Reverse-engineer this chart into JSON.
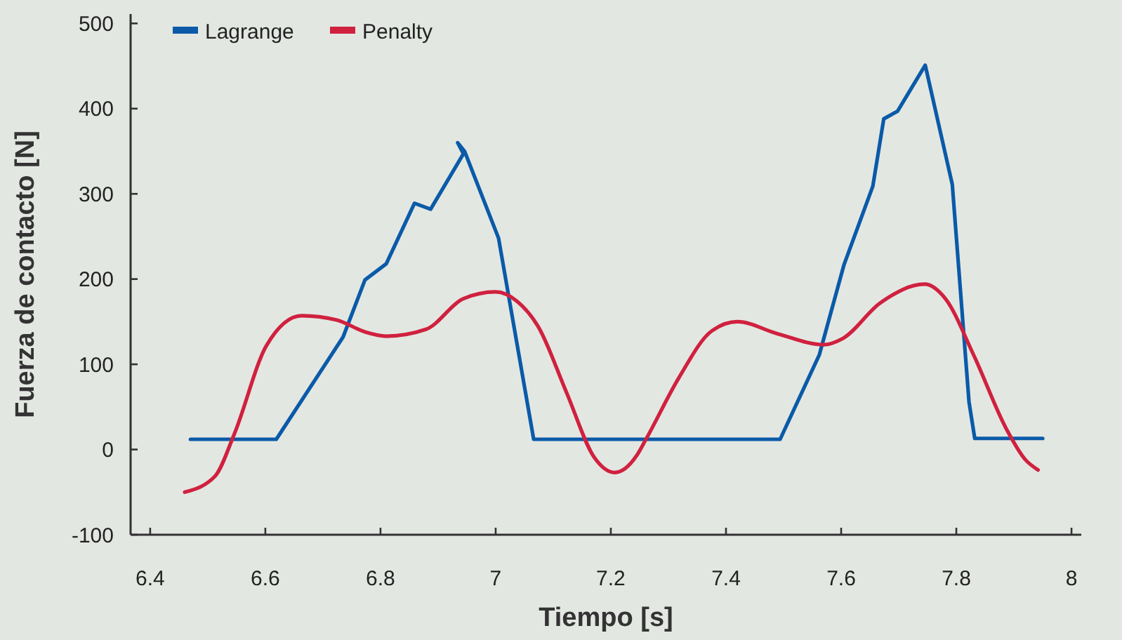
{
  "chart_data": {
    "type": "line",
    "xlabel": "Tiempo [s]",
    "ylabel": "Fuerza de contacto [N]",
    "xlim": [
      6.366,
      8.017
    ],
    "ylim": [
      -100,
      511
    ],
    "xticks": [
      6.4,
      6.6,
      6.8,
      7,
      7.2,
      7.4,
      7.6,
      7.8,
      8
    ],
    "yticks": [
      -100,
      0,
      100,
      200,
      300,
      400,
      500
    ],
    "grid": false,
    "legend": "top left",
    "marker": "none",
    "line_style": "solid",
    "series": [
      {
        "name": "Lagrange",
        "color": "#0a5aa8",
        "x": [
          6.47,
          6.619,
          6.735,
          6.773,
          6.81,
          6.859,
          6.887,
          6.944,
          6.934,
          6.946,
          7.005,
          7.066,
          7.494,
          7.562,
          7.605,
          7.655,
          7.674,
          7.698,
          7.746,
          7.793,
          7.822,
          7.832,
          7.95
        ],
        "values": [
          12,
          12,
          132,
          199,
          218,
          289,
          282,
          347,
          360,
          350,
          248,
          12,
          12,
          111,
          217,
          309,
          388,
          397,
          451,
          311,
          56,
          13,
          13
        ]
      },
      {
        "name": "Penalty",
        "color": "#d0213f",
        "x": [
          6.46,
          6.513,
          6.546,
          6.602,
          6.663,
          6.724,
          6.773,
          6.81,
          6.879,
          6.944,
          7.0,
          7.037,
          7.074,
          7.123,
          7.171,
          7.207,
          7.245,
          7.261,
          7.318,
          7.375,
          7.42,
          7.489,
          7.57,
          7.602,
          7.668,
          7.745,
          7.781,
          7.83,
          7.887,
          7.92,
          7.942
        ],
        "values": [
          -50,
          -31,
          18,
          122,
          157,
          152,
          138,
          133,
          141,
          177,
          185,
          174,
          144,
          67,
          -9,
          -27,
          -7,
          12,
          84,
          139,
          150,
          136,
          123,
          130,
          172,
          194,
          177,
          111,
          24,
          -12,
          -24
        ]
      }
    ]
  }
}
